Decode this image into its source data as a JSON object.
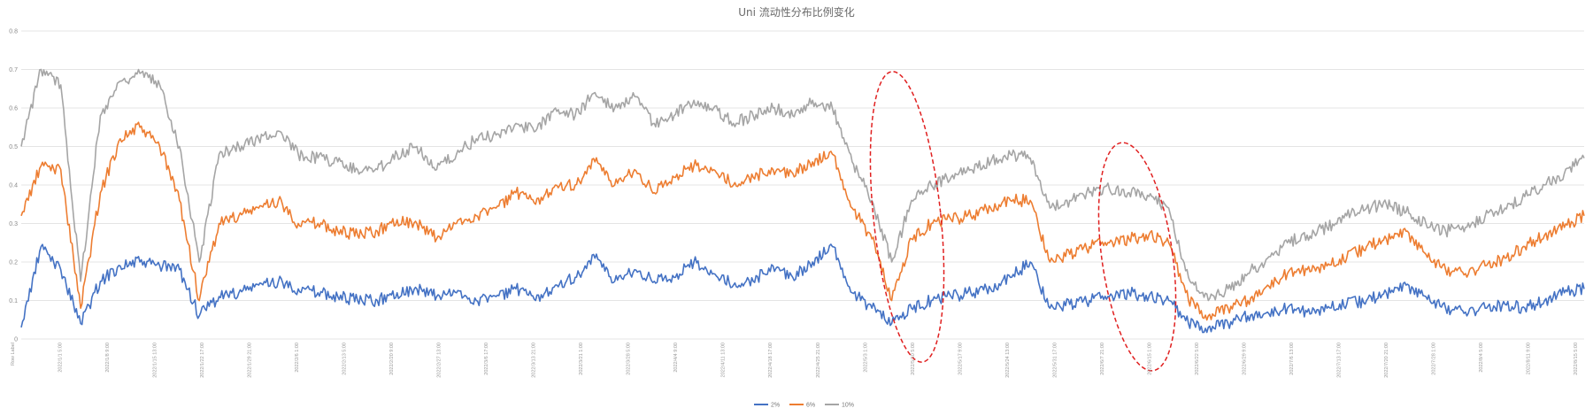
{
  "chart_data": {
    "type": "line",
    "title": "Uni 流动性分布比例变化",
    "xlabel": "",
    "ylabel": "",
    "ylim": [
      0,
      0.8
    ],
    "yticks": [
      "0",
      "0.1",
      "0.2",
      "0.3",
      "0.4",
      "0.5",
      "0.6",
      "0.7",
      "0.8"
    ],
    "grid": true,
    "legend_position": "bottom-center",
    "x_tick_labels": [
      "Row Label",
      "2022/1/1 5:00",
      "2022/1/8 9:00",
      "2022/1/15 13:00",
      "2022/1/22 17:00",
      "2022/1/29 21:00",
      "2022/2/6 1:00",
      "2022/2/13 5:00",
      "2022/2/20 9:00",
      "2022/2/27 13:00",
      "2022/3/6 17:00",
      "2022/3/13 21:00",
      "2022/3/21 1:00",
      "2022/3/28 5:00",
      "2022/4/4 9:00",
      "2022/4/11 13:00",
      "2022/4/18 17:00",
      "2022/4/25 21:00",
      "2022/5/3 1:00",
      "2022/5/10 5:00",
      "2022/5/17 9:00",
      "2022/5/24 13:00",
      "2022/5/31 17:00",
      "2022/6/7 21:00",
      "2022/6/15 1:00",
      "2022/6/22 5:00",
      "2022/6/29 9:00",
      "2022/7/6 13:00",
      "2022/7/13 17:00",
      "2022/7/20 21:00",
      "2022/7/28 1:00",
      "2022/8/4 5:00",
      "2022/8/11 9:00",
      "2022/8/15 5:00"
    ],
    "series": [
      {
        "name": "2%",
        "color": "#4472c4",
        "values": [
          0.03,
          0.24,
          0.18,
          0.04,
          0.15,
          0.19,
          0.2,
          0.19,
          0.18,
          0.06,
          0.11,
          0.12,
          0.14,
          0.15,
          0.13,
          0.12,
          0.11,
          0.1,
          0.1,
          0.12,
          0.13,
          0.11,
          0.12,
          0.1,
          0.11,
          0.13,
          0.1,
          0.14,
          0.16,
          0.21,
          0.15,
          0.18,
          0.15,
          0.16,
          0.2,
          0.17,
          0.14,
          0.15,
          0.19,
          0.16,
          0.2,
          0.24,
          0.12,
          0.08,
          0.04,
          0.08,
          0.1,
          0.11,
          0.12,
          0.13,
          0.16,
          0.2,
          0.08,
          0.09,
          0.1,
          0.11,
          0.12,
          0.11,
          0.1,
          0.04,
          0.03,
          0.04,
          0.06,
          0.07,
          0.08,
          0.07,
          0.08,
          0.09,
          0.1,
          0.12,
          0.14,
          0.11,
          0.08,
          0.07,
          0.08,
          0.09,
          0.08,
          0.1,
          0.12,
          0.13
        ]
      },
      {
        "name": "6%",
        "color": "#ed7d31",
        "values": [
          0.32,
          0.45,
          0.44,
          0.08,
          0.38,
          0.52,
          0.55,
          0.5,
          0.36,
          0.1,
          0.3,
          0.32,
          0.34,
          0.36,
          0.3,
          0.3,
          0.28,
          0.27,
          0.28,
          0.31,
          0.3,
          0.26,
          0.3,
          0.32,
          0.34,
          0.38,
          0.35,
          0.4,
          0.4,
          0.46,
          0.4,
          0.44,
          0.38,
          0.42,
          0.45,
          0.44,
          0.4,
          0.42,
          0.44,
          0.43,
          0.46,
          0.48,
          0.34,
          0.26,
          0.1,
          0.26,
          0.3,
          0.31,
          0.32,
          0.34,
          0.36,
          0.36,
          0.2,
          0.22,
          0.24,
          0.25,
          0.26,
          0.27,
          0.25,
          0.1,
          0.06,
          0.08,
          0.1,
          0.14,
          0.17,
          0.18,
          0.19,
          0.21,
          0.24,
          0.26,
          0.28,
          0.22,
          0.18,
          0.17,
          0.19,
          0.21,
          0.24,
          0.27,
          0.29,
          0.32
        ]
      },
      {
        "name": "10%",
        "color": "#a5a5a5",
        "values": [
          0.5,
          0.7,
          0.66,
          0.15,
          0.58,
          0.67,
          0.69,
          0.66,
          0.5,
          0.2,
          0.48,
          0.5,
          0.52,
          0.54,
          0.48,
          0.47,
          0.46,
          0.44,
          0.44,
          0.48,
          0.5,
          0.44,
          0.48,
          0.52,
          0.53,
          0.56,
          0.54,
          0.6,
          0.58,
          0.64,
          0.6,
          0.63,
          0.56,
          0.58,
          0.62,
          0.6,
          0.56,
          0.58,
          0.6,
          0.58,
          0.62,
          0.6,
          0.46,
          0.36,
          0.2,
          0.36,
          0.4,
          0.42,
          0.44,
          0.46,
          0.48,
          0.47,
          0.34,
          0.36,
          0.38,
          0.39,
          0.38,
          0.37,
          0.34,
          0.16,
          0.1,
          0.13,
          0.17,
          0.21,
          0.25,
          0.27,
          0.29,
          0.32,
          0.34,
          0.35,
          0.33,
          0.3,
          0.28,
          0.29,
          0.32,
          0.34,
          0.37,
          0.4,
          0.43,
          0.47
        ]
      }
    ]
  }
}
